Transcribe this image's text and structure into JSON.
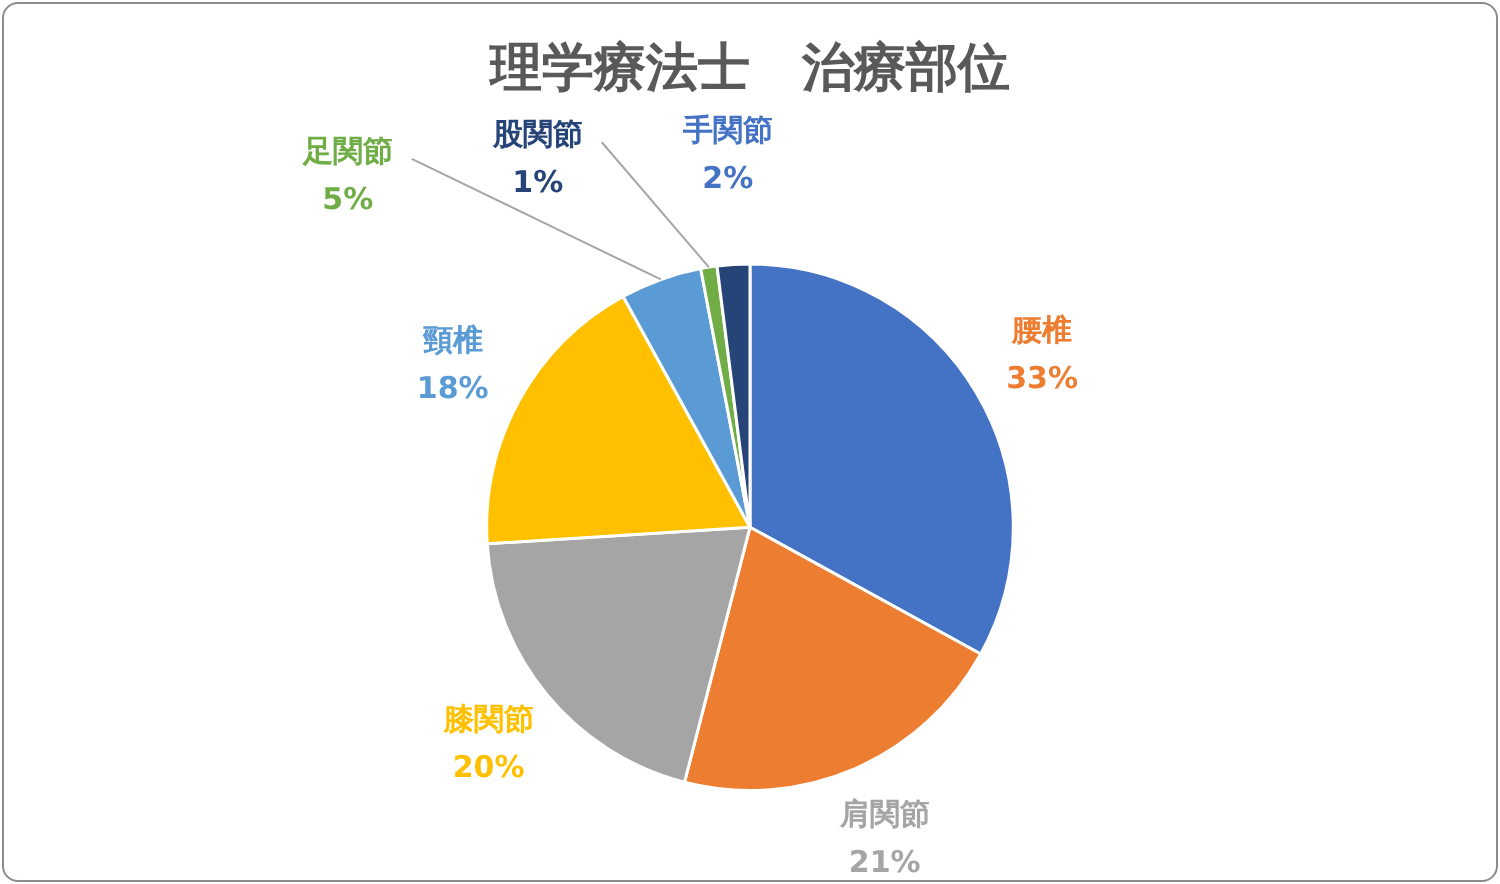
{
  "chart_data": {
    "type": "pie",
    "title": "理学療法士　治療部位",
    "categories": [
      "腰椎",
      "肩関節",
      "膝関節",
      "頸椎",
      "足関節",
      "股関節",
      "手関節"
    ],
    "values": [
      33,
      21,
      20,
      18,
      5,
      1,
      2
    ],
    "value_labels": [
      "33%",
      "21%",
      "20%",
      "18%",
      "5%",
      "1%",
      "2%"
    ],
    "colors": [
      "#4472c4",
      "#ed7d31",
      "#a5a5a5",
      "#ffc000",
      "#5b9bd5",
      "#70ad47",
      "#264478"
    ],
    "legend": false
  }
}
